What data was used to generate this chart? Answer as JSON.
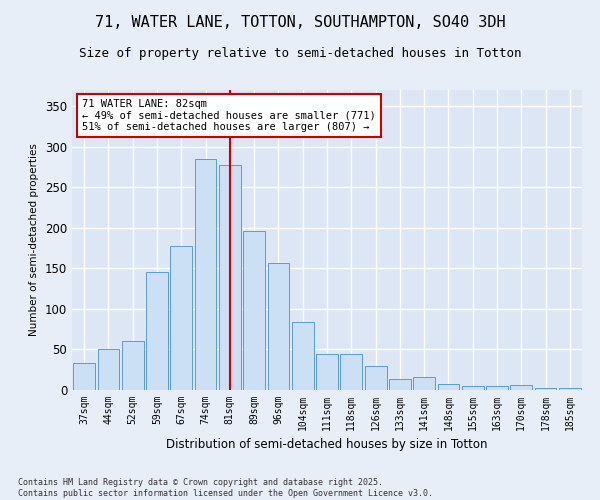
{
  "title_line1": "71, WATER LANE, TOTTON, SOUTHAMPTON, SO40 3DH",
  "title_line2": "Size of property relative to semi-detached houses in Totton",
  "xlabel": "Distribution of semi-detached houses by size in Totton",
  "ylabel": "Number of semi-detached properties",
  "categories": [
    "37sqm",
    "44sqm",
    "52sqm",
    "59sqm",
    "67sqm",
    "74sqm",
    "81sqm",
    "89sqm",
    "96sqm",
    "104sqm",
    "111sqm",
    "118sqm",
    "126sqm",
    "133sqm",
    "141sqm",
    "148sqm",
    "155sqm",
    "163sqm",
    "170sqm",
    "178sqm",
    "185sqm"
  ],
  "values": [
    33,
    51,
    61,
    145,
    178,
    285,
    278,
    196,
    157,
    84,
    45,
    45,
    30,
    14,
    16,
    8,
    5,
    5,
    6,
    3,
    2
  ],
  "bar_color": "#cce0f5",
  "bar_edge_color": "#5b9bd5",
  "vline_x": 6,
  "vline_color": "#cc0000",
  "annotation_text": "71 WATER LANE: 82sqm\n← 49% of semi-detached houses are smaller (771)\n51% of semi-detached houses are larger (807) →",
  "annotation_box_color": "#ffffff",
  "annotation_box_edge": "#cc0000",
  "footnote": "Contains HM Land Registry data © Crown copyright and database right 2025.\nContains public sector information licensed under the Open Government Licence v3.0.",
  "ylim": [
    0,
    370
  ],
  "yticks": [
    0,
    50,
    100,
    150,
    200,
    250,
    300,
    350
  ],
  "fig_bg_color": "#e8eef8",
  "plot_bg_color": "#dce6f5",
  "title_fontsize": 11,
  "subtitle_fontsize": 9
}
